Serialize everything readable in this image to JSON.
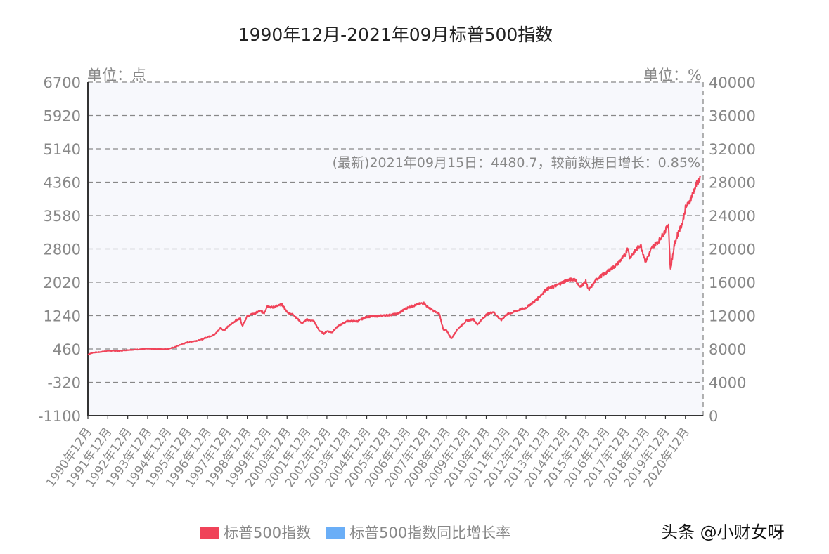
{
  "chart_data": {
    "type": "line",
    "title": "1990年12月-2021年09月标普500指数",
    "xlabel": "",
    "ylabel": "单位：点",
    "ylabel_right": "单位：%",
    "ylim": [
      -1100,
      6700
    ],
    "ylim_right": [
      0,
      40000
    ],
    "yticks_left": [
      6700,
      5920,
      5140,
      4360,
      3580,
      2800,
      2020,
      1240,
      460,
      -320,
      -1100
    ],
    "yticks_right": [
      40000,
      36000,
      32000,
      28000,
      24000,
      20000,
      16000,
      12000,
      8000,
      4000,
      0
    ],
    "grid": true,
    "legend_position": "bottom",
    "categories": [
      "1990年12月",
      "1991年12月",
      "1992年12月",
      "1993年12月",
      "1994年12月",
      "1995年12月",
      "1996年12月",
      "1997年12月",
      "1998年12月",
      "1999年12月",
      "2000年12月",
      "2001年12月",
      "2002年12月",
      "2003年12月",
      "2004年12月",
      "2005年12月",
      "2006年12月",
      "2007年12月",
      "2008年12月",
      "2009年12月",
      "2010年12月",
      "2011年12月",
      "2012年12月",
      "2013年12月",
      "2014年12月",
      "2015年12月",
      "2016年12月",
      "2017年12月",
      "2018年12月",
      "2019年12月",
      "2020年12月"
    ],
    "series": [
      {
        "name": "标普500指数",
        "color": "#f04359",
        "x": [
          1990.95,
          1991.2,
          1991.5,
          1991.95,
          1992.5,
          1992.95,
          1993.5,
          1993.95,
          1994.5,
          1994.95,
          1995.3,
          1995.6,
          1995.95,
          1996.3,
          1996.6,
          1996.95,
          1997.3,
          1997.6,
          1997.8,
          1997.95,
          1998.3,
          1998.6,
          1998.7,
          1998.95,
          1999.3,
          1999.6,
          1999.8,
          1999.95,
          2000.2,
          2000.7,
          2000.95,
          2001.3,
          2001.7,
          2001.95,
          2002.3,
          2002.55,
          2002.8,
          2002.95,
          2003.2,
          2003.5,
          2003.95,
          2004.5,
          2004.95,
          2005.5,
          2005.95,
          2006.5,
          2006.95,
          2007.5,
          2007.8,
          2007.95,
          2008.3,
          2008.6,
          2008.8,
          2008.95,
          2009.2,
          2009.5,
          2009.95,
          2010.3,
          2010.5,
          2010.95,
          2011.3,
          2011.7,
          2011.95,
          2012.5,
          2012.95,
          2013.5,
          2013.95,
          2014.5,
          2014.95,
          2015.4,
          2015.65,
          2015.95,
          2016.1,
          2016.5,
          2016.95,
          2017.5,
          2017.95,
          2018.05,
          2018.15,
          2018.7,
          2018.95,
          2019.3,
          2019.6,
          2019.95,
          2020.1,
          2020.2,
          2020.4,
          2020.6,
          2020.8,
          2020.95,
          2021.2,
          2021.5,
          2021.7
        ],
        "values": [
          330,
          375,
          385,
          417,
          415,
          436,
          450,
          466,
          458,
          459,
          500,
          560,
          615,
          645,
          670,
          740,
          790,
          950,
          900,
          970,
          1100,
          1180,
          1000,
          1229,
          1290,
          1350,
          1300,
          1469,
          1430,
          1500,
          1320,
          1250,
          1060,
          1148,
          1110,
          900,
          820,
          880,
          850,
          990,
          1111,
          1110,
          1212,
          1230,
          1248,
          1280,
          1418,
          1500,
          1540,
          1468,
          1350,
          1280,
          900,
          903,
          700,
          920,
          1115,
          1160,
          1030,
          1258,
          1330,
          1130,
          1258,
          1360,
          1426,
          1620,
          1848,
          1950,
          2059,
          2100,
          1900,
          2044,
          1830,
          2100,
          2239,
          2430,
          2674,
          2850,
          2600,
          2900,
          2500,
          2850,
          2980,
          3231,
          3380,
          2300,
          2900,
          3200,
          3400,
          3756,
          3950,
          4300,
          4480.7
        ]
      },
      {
        "name": "标普500指数同比增长率",
        "color": "#6aaef7",
        "values": []
      }
    ],
    "annotations": [
      {
        "text": "(最新)2021年09月15日：4480.7，较前数据日增长：0.85%",
        "date": "2021年09月15日",
        "value": 4480.7,
        "change_pct": 0.85
      }
    ]
  },
  "header": {
    "title": "1990年12月-2021年09月标普500指数"
  },
  "axes": {
    "left_unit": "单位：点",
    "right_unit": "单位：%"
  },
  "annotation": {
    "text": "(最新)2021年09月15日：4480.7，较前数据日增长：0.85%"
  },
  "legend": {
    "items": [
      {
        "label": "标普500指数",
        "color": "#f04359"
      },
      {
        "label": "标普500指数同比增长率",
        "color": "#6aaef7"
      }
    ]
  },
  "watermark": {
    "text": "头条 @小财女呀"
  },
  "colors": {
    "plot_bg": "#f7f8fc",
    "grid": "#888888",
    "axis": "#333333",
    "tick_text": "#888888"
  }
}
